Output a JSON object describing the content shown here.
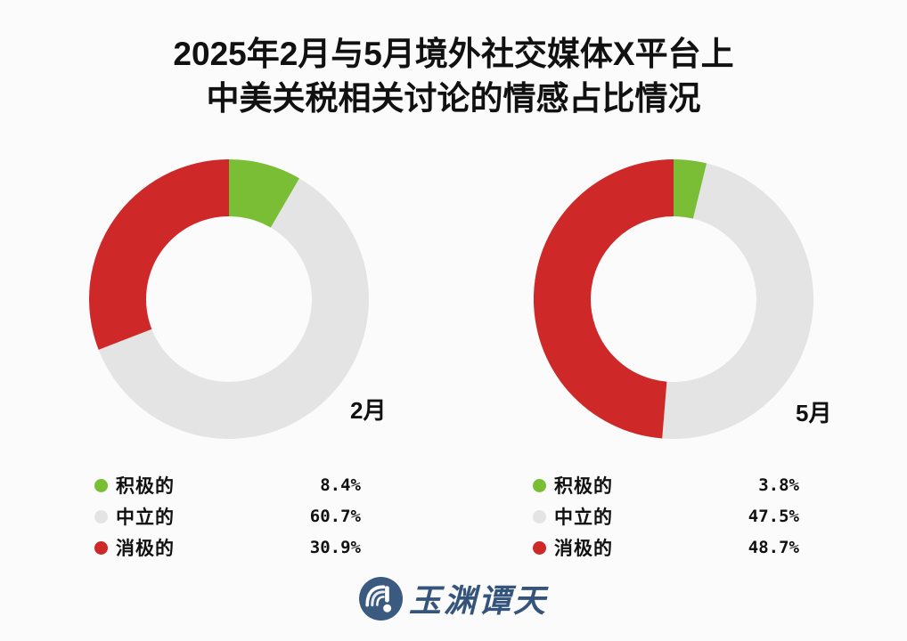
{
  "title": {
    "line1": "2025年2月与5月境外社交媒体X平台上",
    "line2": "中美关税相关讨论的情感占比情况"
  },
  "colors": {
    "positive_green": "#79BE34",
    "neutral_gray": "#E4E4E4",
    "negative_red": "#CE2828",
    "background": "#FBFBFB",
    "logo_blue": "#3A5A80",
    "text": "#111111"
  },
  "chart_data": {
    "type": "pie",
    "subtype": "donut",
    "title": "2025年2月与5月境外社交媒体X平台上中美关税相关讨论的情感占比情况",
    "categories": [
      "积极的",
      "中立的",
      "消极的"
    ],
    "series": [
      {
        "name": "2月",
        "values": [
          8.4,
          60.7,
          30.9
        ]
      },
      {
        "name": "5月",
        "values": [
          3.8,
          47.5,
          48.7
        ]
      }
    ],
    "unit": "%",
    "slice_colors": [
      "#79BE34",
      "#E4E4E4",
      "#CE2828"
    ],
    "start_angle": "top",
    "direction": "clockwise",
    "inner_radius_ratio": 0.59,
    "legend_position": "bottom"
  },
  "charts": [
    {
      "label": "2月",
      "legend": [
        {
          "name": "积极的",
          "percent": "8.4%",
          "color": "#79BE34"
        },
        {
          "name": "中立的",
          "percent": "60.7%",
          "color": "#E4E4E4"
        },
        {
          "name": "消极的",
          "percent": "30.9%",
          "color": "#CE2828"
        }
      ]
    },
    {
      "label": "5月",
      "legend": [
        {
          "name": "积极的",
          "percent": "3.8%",
          "color": "#79BE34"
        },
        {
          "name": "中立的",
          "percent": "47.5%",
          "color": "#E4E4E4"
        },
        {
          "name": "消极的",
          "percent": "48.7%",
          "color": "#CE2828"
        }
      ]
    }
  ],
  "footer": {
    "brand": "玉渊谭天"
  }
}
